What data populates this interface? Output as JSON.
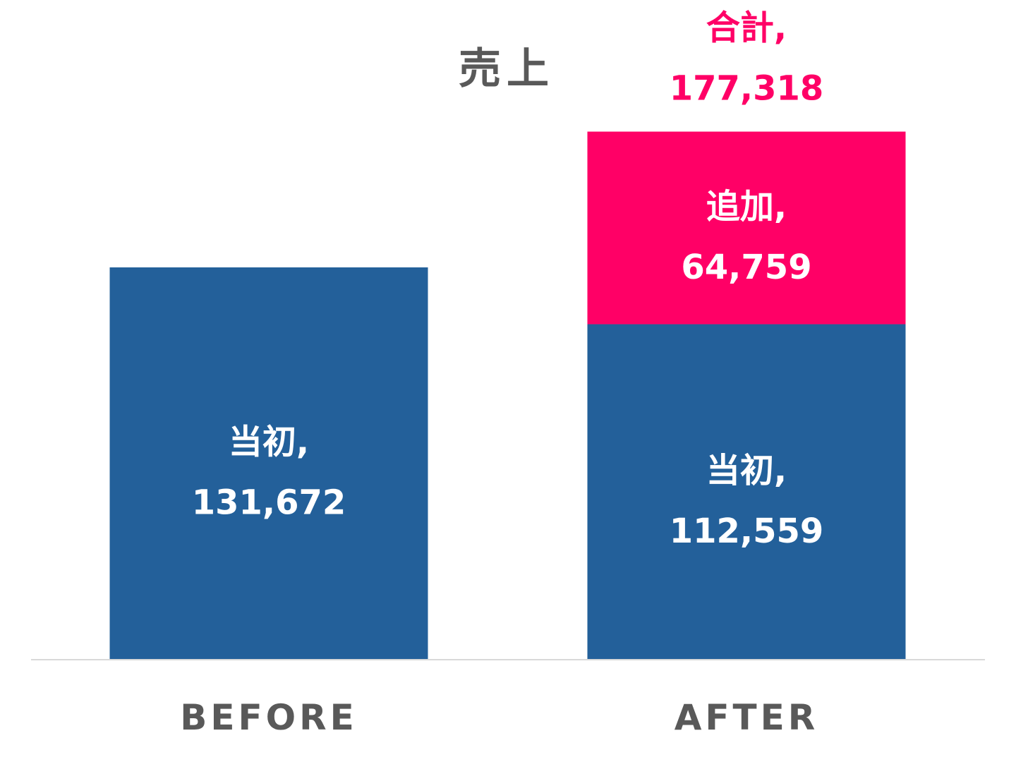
{
  "chart_data": {
    "type": "bar",
    "stacked": true,
    "title": "売上",
    "categories": [
      "BEFORE",
      "AFTER"
    ],
    "series": [
      {
        "name": "当初",
        "values": [
          131672,
          112559
        ],
        "color": "#23609a"
      },
      {
        "name": "追加",
        "values": [
          null,
          64759
        ],
        "color": "#ff0066"
      }
    ],
    "totals": [
      {
        "category": "AFTER",
        "name": "合計",
        "value": 177318,
        "color": "#ff0066"
      }
    ],
    "data_labels": true,
    "ylim": [
      0,
      195000
    ],
    "grid": false,
    "legend": "none",
    "axis_color": "#d9d9d9",
    "label_text_color": "#ffffff",
    "text_color": "#595959"
  }
}
